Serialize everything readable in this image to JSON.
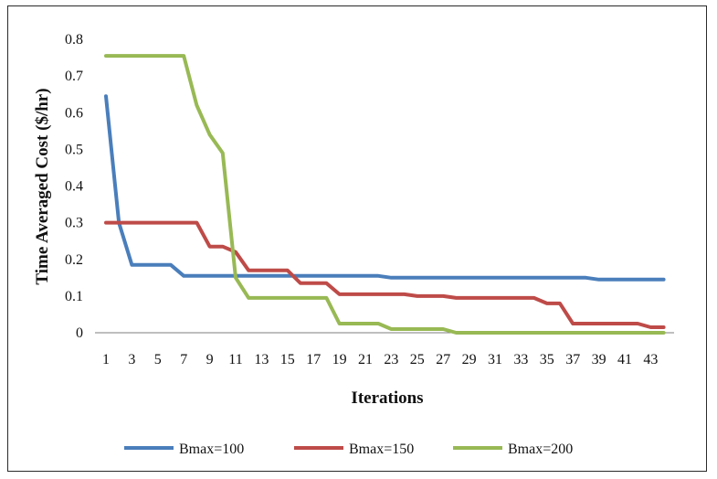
{
  "chart_data": {
    "type": "line",
    "title": "",
    "xlabel": "Iterations",
    "ylabel": "Time Averaged Cost ($/hr)",
    "x": [
      1,
      2,
      3,
      4,
      5,
      6,
      7,
      8,
      9,
      10,
      11,
      12,
      13,
      14,
      15,
      16,
      17,
      18,
      19,
      20,
      21,
      22,
      23,
      24,
      25,
      26,
      27,
      28,
      29,
      30,
      31,
      32,
      33,
      34,
      35,
      36,
      37,
      38,
      39,
      40,
      41,
      42,
      43,
      44
    ],
    "x_tick_labels": [
      "1",
      "3",
      "5",
      "7",
      "9",
      "11",
      "13",
      "15",
      "17",
      "19",
      "21",
      "23",
      "25",
      "27",
      "29",
      "31",
      "33",
      "35",
      "37",
      "39",
      "41",
      "43"
    ],
    "y_tick_labels": [
      "0",
      "0.1",
      "0.2",
      "0.3",
      "0.4",
      "0.5",
      "0.6",
      "0.7",
      "0.8"
    ],
    "ylim": [
      0,
      0.8
    ],
    "xlim": [
      1,
      44
    ],
    "grid": false,
    "legend_position": "bottom",
    "series": [
      {
        "name": "Bmax=100",
        "color": "#4a7ebb",
        "values": [
          0.645,
          0.3,
          0.185,
          0.185,
          0.185,
          0.185,
          0.155,
          0.155,
          0.155,
          0.155,
          0.155,
          0.155,
          0.155,
          0.155,
          0.155,
          0.155,
          0.155,
          0.155,
          0.155,
          0.155,
          0.155,
          0.155,
          0.15,
          0.15,
          0.15,
          0.15,
          0.15,
          0.15,
          0.15,
          0.15,
          0.15,
          0.15,
          0.15,
          0.15,
          0.15,
          0.15,
          0.15,
          0.15,
          0.145,
          0.145,
          0.145,
          0.145,
          0.145,
          0.145
        ]
      },
      {
        "name": "Bmax=150",
        "color": "#be4b48",
        "values": [
          0.3,
          0.3,
          0.3,
          0.3,
          0.3,
          0.3,
          0.3,
          0.3,
          0.235,
          0.235,
          0.22,
          0.17,
          0.17,
          0.17,
          0.17,
          0.135,
          0.135,
          0.135,
          0.105,
          0.105,
          0.105,
          0.105,
          0.105,
          0.105,
          0.1,
          0.1,
          0.1,
          0.095,
          0.095,
          0.095,
          0.095,
          0.095,
          0.095,
          0.095,
          0.08,
          0.08,
          0.025,
          0.025,
          0.025,
          0.025,
          0.025,
          0.025,
          0.015,
          0.015
        ]
      },
      {
        "name": "Bmax=200",
        "color": "#98b954",
        "values": [
          0.755,
          0.755,
          0.755,
          0.755,
          0.755,
          0.755,
          0.755,
          0.62,
          0.54,
          0.49,
          0.15,
          0.095,
          0.095,
          0.095,
          0.095,
          0.095,
          0.095,
          0.095,
          0.025,
          0.025,
          0.025,
          0.025,
          0.01,
          0.01,
          0.01,
          0.01,
          0.01,
          0.0,
          0.0,
          0.0,
          0.0,
          0.0,
          0.0,
          0.0,
          0.0,
          0.0,
          0.0,
          0.0,
          0.0,
          0.0,
          0.0,
          0.0,
          0.0,
          0.0
        ]
      }
    ]
  }
}
